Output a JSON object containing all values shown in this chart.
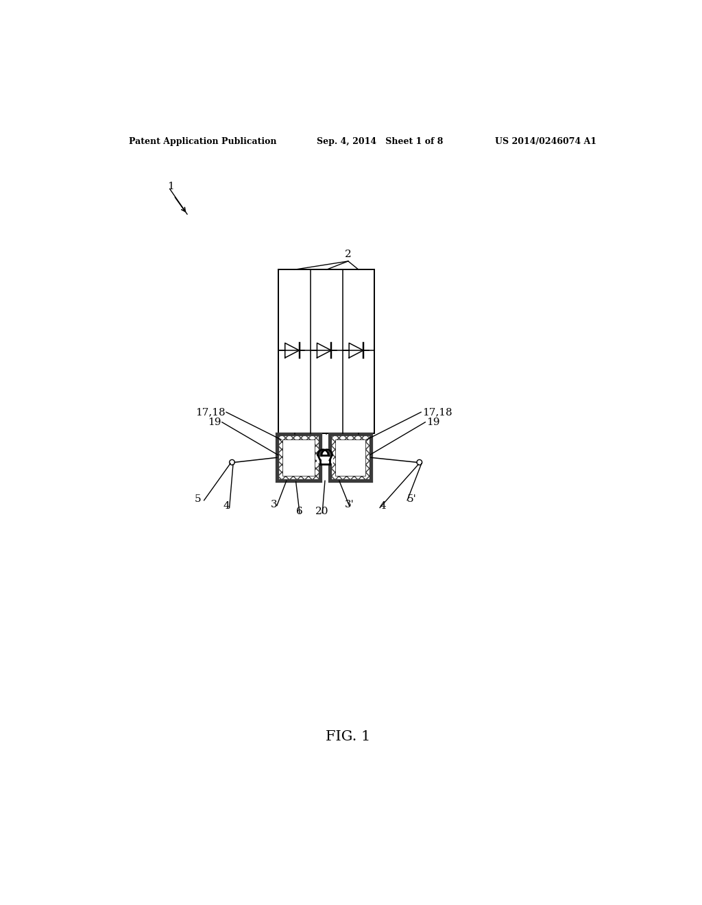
{
  "background_color": "#ffffff",
  "header_left": "Patent Application Publication",
  "header_center": "Sep. 4, 2014   Sheet 1 of 8",
  "header_right": "US 2014/0246074 A1",
  "figure_label": "FIG. 1",
  "label_fontsize": 11,
  "header_fontsize": 9
}
